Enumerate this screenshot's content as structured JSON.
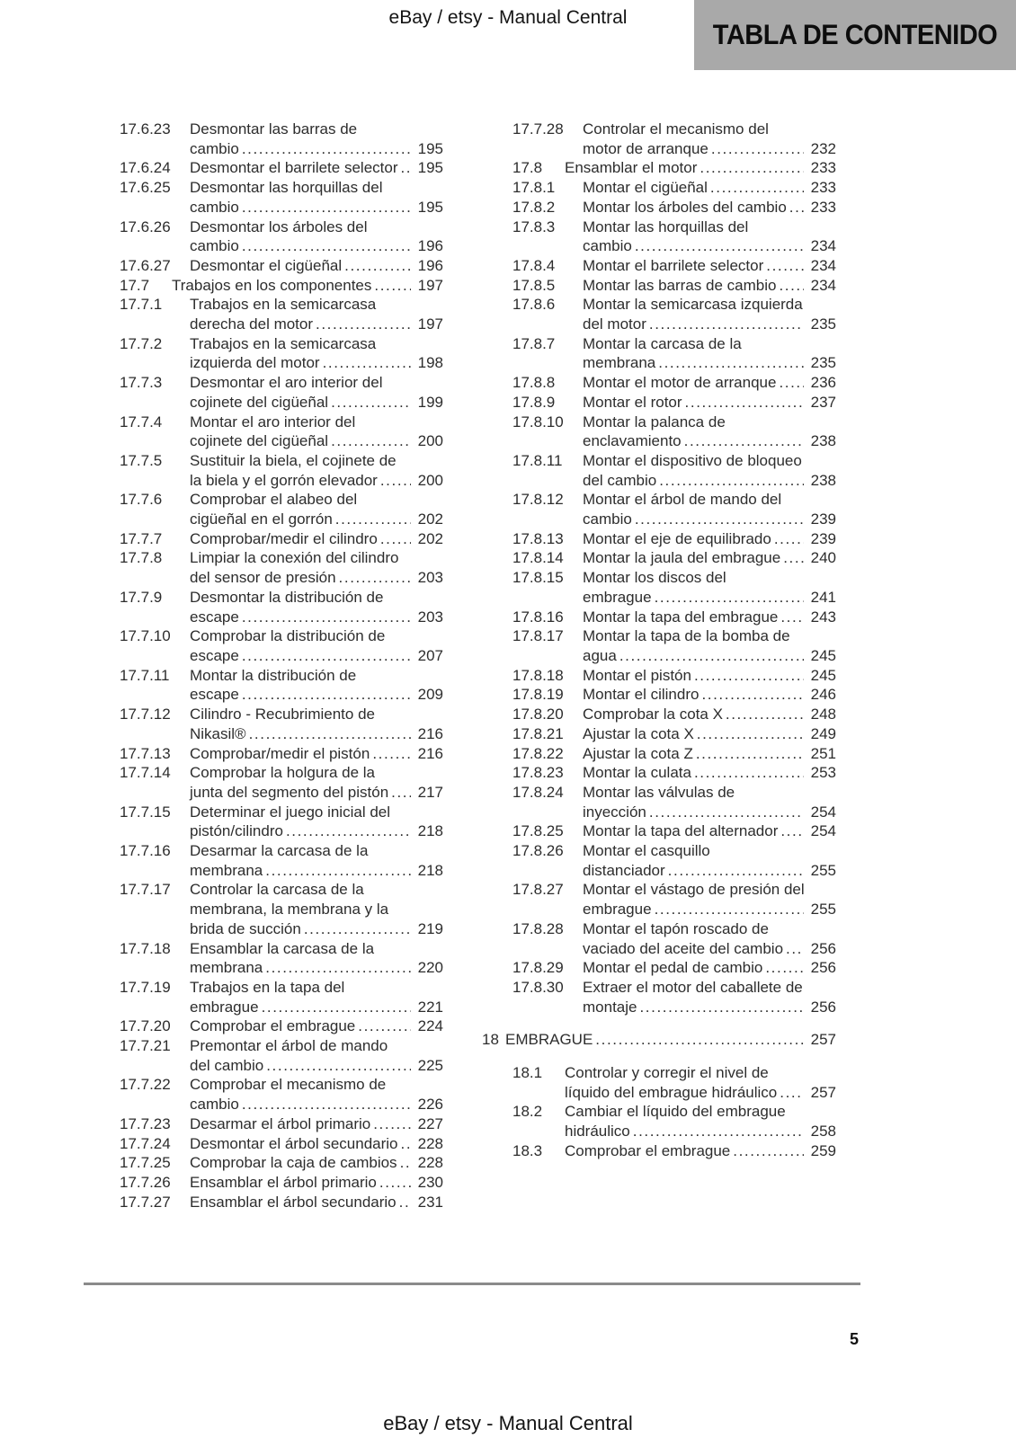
{
  "header": {
    "watermark": "eBay / etsy - Manual Central",
    "banner": "TABLA DE CONTENIDO"
  },
  "footer": {
    "page_number": "5",
    "watermark": "eBay / etsy - Manual Central"
  },
  "colors": {
    "banner_bg": "#a9a9a9",
    "text": "#2d2d2d",
    "divider": "#8a8a8a"
  },
  "toc": {
    "left_column": [
      {
        "num": "17.6.23",
        "level": "sub",
        "lines": [
          "Desmontar las barras de",
          "cambio"
        ],
        "page": "195"
      },
      {
        "num": "17.6.24",
        "level": "sub",
        "lines": [
          "Desmontar el barrilete selector"
        ],
        "page": "195"
      },
      {
        "num": "17.6.25",
        "level": "sub",
        "lines": [
          "Desmontar las horquillas del",
          "cambio"
        ],
        "page": "195"
      },
      {
        "num": "17.6.26",
        "level": "sub",
        "lines": [
          "Desmontar los árboles del",
          "cambio"
        ],
        "page": "196"
      },
      {
        "num": "17.6.27",
        "level": "sub",
        "lines": [
          "Desmontar el cigüeñal"
        ],
        "page": "196"
      },
      {
        "num": "17.7",
        "level": "sec",
        "lines": [
          "Trabajos en los componentes"
        ],
        "page": "197"
      },
      {
        "num": "17.7.1",
        "level": "sub",
        "lines": [
          "Trabajos en la semicarcasa",
          "derecha del motor"
        ],
        "page": "197"
      },
      {
        "num": "17.7.2",
        "level": "sub",
        "lines": [
          "Trabajos en la semicarcasa",
          "izquierda del motor"
        ],
        "page": "198"
      },
      {
        "num": "17.7.3",
        "level": "sub",
        "lines": [
          "Desmontar el aro interior del",
          "cojinete del cigüeñal"
        ],
        "page": "199"
      },
      {
        "num": "17.7.4",
        "level": "sub",
        "lines": [
          "Montar el aro interior del",
          "cojinete del cigüeñal"
        ],
        "page": "200"
      },
      {
        "num": "17.7.5",
        "level": "sub",
        "lines": [
          "Sustituir la biela, el cojinete de",
          "la biela y el gorrón elevador"
        ],
        "page": "200"
      },
      {
        "num": "17.7.6",
        "level": "sub",
        "lines": [
          "Comprobar el alabeo del",
          "cigüeñal en el gorrón"
        ],
        "page": "202"
      },
      {
        "num": "17.7.7",
        "level": "sub",
        "lines": [
          "Comprobar/medir el cilindro"
        ],
        "page": "202"
      },
      {
        "num": "17.7.8",
        "level": "sub",
        "lines": [
          "Limpiar la conexión del cilindro",
          "del sensor de presión"
        ],
        "page": "203"
      },
      {
        "num": "17.7.9",
        "level": "sub",
        "lines": [
          "Desmontar la distribución de",
          "escape"
        ],
        "page": "203"
      },
      {
        "num": "17.7.10",
        "level": "sub",
        "lines": [
          "Comprobar la distribución de",
          "escape"
        ],
        "page": "207"
      },
      {
        "num": "17.7.11",
        "level": "sub",
        "lines": [
          "Montar la distribución de",
          "escape"
        ],
        "page": "209"
      },
      {
        "num": "17.7.12",
        "level": "sub",
        "lines": [
          "Cilindro - Recubrimiento de",
          "Nikasil®"
        ],
        "page": "216"
      },
      {
        "num": "17.7.13",
        "level": "sub",
        "lines": [
          "Comprobar/medir el pistón"
        ],
        "page": "216"
      },
      {
        "num": "17.7.14",
        "level": "sub",
        "lines": [
          "Comprobar la holgura de la",
          "junta del segmento del pistón"
        ],
        "page": "217"
      },
      {
        "num": "17.7.15",
        "level": "sub",
        "lines": [
          "Determinar el juego inicial del",
          "pistón/cilindro"
        ],
        "page": "218"
      },
      {
        "num": "17.7.16",
        "level": "sub",
        "lines": [
          "Desarmar la carcasa de la",
          "membrana"
        ],
        "page": "218"
      },
      {
        "num": "17.7.17",
        "level": "sub",
        "lines": [
          "Controlar la carcasa de la",
          "membrana, la membrana y la",
          "brida de succión"
        ],
        "page": "219"
      },
      {
        "num": "17.7.18",
        "level": "sub",
        "lines": [
          "Ensamblar la carcasa de la",
          "membrana"
        ],
        "page": "220"
      },
      {
        "num": "17.7.19",
        "level": "sub",
        "lines": [
          "Trabajos en la tapa del",
          "embrague"
        ],
        "page": "221"
      },
      {
        "num": "17.7.20",
        "level": "sub",
        "lines": [
          "Comprobar el embrague"
        ],
        "page": "224"
      },
      {
        "num": "17.7.21",
        "level": "sub",
        "lines": [
          "Premontar el árbol de mando",
          "del cambio"
        ],
        "page": "225"
      },
      {
        "num": "17.7.22",
        "level": "sub",
        "lines": [
          "Comprobar el mecanismo de",
          "cambio"
        ],
        "page": "226"
      },
      {
        "num": "17.7.23",
        "level": "sub",
        "lines": [
          "Desarmar el árbol primario"
        ],
        "page": "227"
      },
      {
        "num": "17.7.24",
        "level": "sub",
        "lines": [
          "Desmontar el árbol secundario"
        ],
        "page": "228"
      },
      {
        "num": "17.7.25",
        "level": "sub",
        "lines": [
          "Comprobar la caja de cambios"
        ],
        "page": "228"
      },
      {
        "num": "17.7.26",
        "level": "sub",
        "lines": [
          "Ensamblar el árbol primario"
        ],
        "page": "230"
      },
      {
        "num": "17.7.27",
        "level": "sub",
        "lines": [
          "Ensamblar el árbol secundario"
        ],
        "page": "231"
      }
    ],
    "right_column": [
      {
        "num": "17.7.28",
        "level": "sub",
        "lines": [
          "Controlar el mecanismo del",
          "motor de arranque"
        ],
        "page": "232"
      },
      {
        "num": "17.8",
        "level": "sec",
        "lines": [
          "Ensamblar el motor"
        ],
        "page": "233"
      },
      {
        "num": "17.8.1",
        "level": "sub",
        "lines": [
          "Montar el cigüeñal"
        ],
        "page": "233"
      },
      {
        "num": "17.8.2",
        "level": "sub",
        "lines": [
          "Montar los árboles del cambio"
        ],
        "page": "233"
      },
      {
        "num": "17.8.3",
        "level": "sub",
        "lines": [
          "Montar las horquillas del",
          "cambio"
        ],
        "page": "234"
      },
      {
        "num": "17.8.4",
        "level": "sub",
        "lines": [
          "Montar el barrilete selector"
        ],
        "page": "234"
      },
      {
        "num": "17.8.5",
        "level": "sub",
        "lines": [
          "Montar las barras de cambio"
        ],
        "page": "234"
      },
      {
        "num": "17.8.6",
        "level": "sub",
        "lines": [
          "Montar la semicarcasa izquierda",
          "del motor"
        ],
        "page": "235"
      },
      {
        "num": "17.8.7",
        "level": "sub",
        "lines": [
          "Montar la carcasa de la",
          "membrana"
        ],
        "page": "235"
      },
      {
        "num": "17.8.8",
        "level": "sub",
        "lines": [
          "Montar el motor de arranque"
        ],
        "page": "236"
      },
      {
        "num": "17.8.9",
        "level": "sub",
        "lines": [
          "Montar el rotor"
        ],
        "page": "237"
      },
      {
        "num": "17.8.10",
        "level": "sub",
        "lines": [
          "Montar la palanca de",
          "enclavamiento"
        ],
        "page": "238"
      },
      {
        "num": "17.8.11",
        "level": "sub",
        "lines": [
          "Montar el dispositivo de bloqueo",
          "del cambio"
        ],
        "page": "238"
      },
      {
        "num": "17.8.12",
        "level": "sub",
        "lines": [
          "Montar el árbol de mando del",
          "cambio"
        ],
        "page": "239"
      },
      {
        "num": "17.8.13",
        "level": "sub",
        "lines": [
          "Montar el eje de equilibrado"
        ],
        "page": "239"
      },
      {
        "num": "17.8.14",
        "level": "sub",
        "lines": [
          "Montar la jaula del embrague"
        ],
        "page": "240"
      },
      {
        "num": "17.8.15",
        "level": "sub",
        "lines": [
          "Montar los discos del",
          "embrague"
        ],
        "page": "241"
      },
      {
        "num": "17.8.16",
        "level": "sub",
        "lines": [
          "Montar la tapa del embrague"
        ],
        "page": "243"
      },
      {
        "num": "17.8.17",
        "level": "sub",
        "lines": [
          "Montar la tapa de la bomba de",
          "agua"
        ],
        "page": "245"
      },
      {
        "num": "17.8.18",
        "level": "sub",
        "lines": [
          "Montar el pistón"
        ],
        "page": "245"
      },
      {
        "num": "17.8.19",
        "level": "sub",
        "lines": [
          "Montar el cilindro"
        ],
        "page": "246"
      },
      {
        "num": "17.8.20",
        "level": "sub",
        "lines": [
          "Comprobar la cota X"
        ],
        "page": "248"
      },
      {
        "num": "17.8.21",
        "level": "sub",
        "lines": [
          "Ajustar la cota X"
        ],
        "page": "249"
      },
      {
        "num": "17.8.22",
        "level": "sub",
        "lines": [
          "Ajustar la cota Z"
        ],
        "page": "251"
      },
      {
        "num": "17.8.23",
        "level": "sub",
        "lines": [
          "Montar la culata"
        ],
        "page": "253"
      },
      {
        "num": "17.8.24",
        "level": "sub",
        "lines": [
          "Montar las válvulas de",
          "inyección"
        ],
        "page": "254"
      },
      {
        "num": "17.8.25",
        "level": "sub",
        "lines": [
          "Montar la tapa del alternador"
        ],
        "page": "254"
      },
      {
        "num": "17.8.26",
        "level": "sub",
        "lines": [
          "Montar el casquillo",
          "distanciador"
        ],
        "page": "255"
      },
      {
        "num": "17.8.27",
        "level": "sub",
        "lines": [
          "Montar el vástago de presión del",
          "embrague"
        ],
        "page": "255"
      },
      {
        "num": "17.8.28",
        "level": "sub",
        "lines": [
          "Montar el tapón roscado de",
          "vaciado del aceite del cambio"
        ],
        "page": "256"
      },
      {
        "num": "17.8.29",
        "level": "sub",
        "lines": [
          "Montar el pedal de cambio"
        ],
        "page": "256"
      },
      {
        "num": "17.8.30",
        "level": "sub",
        "lines": [
          "Extraer el motor del caballete de",
          "montaje"
        ],
        "page": "256"
      },
      {
        "num": "18",
        "level": "chapter",
        "lines": [
          "EMBRAGUE"
        ],
        "page": "257"
      },
      {
        "num": "18.1",
        "level": "sec",
        "lines": [
          "Controlar y corregir el nivel de",
          "líquido del embrague hidráulico"
        ],
        "page": "257"
      },
      {
        "num": "18.2",
        "level": "sec",
        "lines": [
          "Cambiar el líquido del embrague",
          "hidráulico"
        ],
        "page": "258"
      },
      {
        "num": "18.3",
        "level": "sec",
        "lines": [
          "Comprobar el embrague"
        ],
        "page": "259"
      }
    ]
  }
}
